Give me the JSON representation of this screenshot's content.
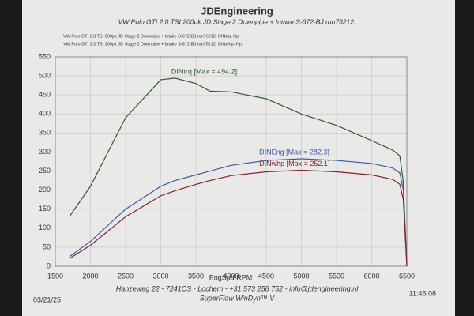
{
  "chart_data": {
    "type": "line",
    "title": "JDEngineering",
    "subtitle": "VW Polo GTI 2.0 TSI 200pk  JD Stage 2  Downpipe + Intake  S-672-BJ  run76212,",
    "legend_lines": [
      "VW Polo GTI 2.0 TSI 200pk   JD Stage 2   Downpipe + Intake   S-672-BJ   run76212; DINtrq- Hp",
      "VW Polo GTI 2.0 TSI 200pk   JD Stage 2   Downpipe + Intake   S-672-BJ   run76212; DINwhp- Hp"
    ],
    "x_label": "EngSpd  RPM",
    "footer": "Hanzeweg 22 - 7241CS - Lochem - +31 573 258 752 - info@jdengineering.nl",
    "software": "SuperFlow WinDyn™ V",
    "date": "03/21/25",
    "time": "11:45:08",
    "x": [
      1700,
      2000,
      2500,
      3000,
      3200,
      3500,
      3700,
      4000,
      4500,
      5000,
      5500,
      6000,
      6300,
      6400,
      6450,
      6500
    ],
    "series": [
      {
        "name": "DINtrq [Max = 494.2]",
        "color": "#2f5a35",
        "values": [
          130,
          210,
          390,
          490,
          494.2,
          480,
          460,
          458,
          440,
          400,
          370,
          330,
          305,
          290,
          220,
          0
        ]
      },
      {
        "name": "DINEng [Max = 282.3]",
        "color": "#3a5aa8",
        "values": [
          25,
          65,
          150,
          210,
          225,
          240,
          250,
          265,
          278,
          282.3,
          278,
          270,
          258,
          245,
          200,
          0
        ]
      },
      {
        "name": "DINwhp [Max = 252.1]",
        "color": "#8a1f2e",
        "values": [
          20,
          55,
          130,
          185,
          198,
          215,
          225,
          238,
          248,
          252.1,
          248,
          240,
          228,
          215,
          175,
          0
        ]
      }
    ],
    "label_x": [
      3150,
      4400,
      4400
    ],
    "xlim": [
      1500,
      6500
    ],
    "xticks": [
      1500,
      2000,
      2500,
      3000,
      3500,
      4000,
      4500,
      5000,
      5500,
      6000,
      6500
    ],
    "ylim": [
      0,
      550
    ],
    "yticks": [
      0,
      50,
      100,
      150,
      200,
      250,
      300,
      350,
      400,
      450,
      500,
      550
    ],
    "grid": true
  }
}
